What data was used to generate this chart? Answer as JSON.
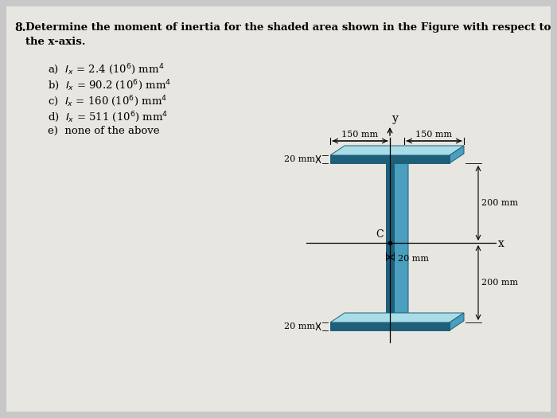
{
  "bg_color": "#c8c8c8",
  "paper_color": "#e8e6e0",
  "title_num": "8.",
  "title_text": "Determine the moment of inertia for the shaded area shown in the Figure with respect to\n    the x-axis.",
  "answer_options": [
    "a)  Iₓ = 2.4 (10⁶) mm⁴",
    "b)  Iₓ = 90.2 (10⁶) mm⁴",
    "c)  Iₓ = 160 (10⁶) mm⁴",
    "d)  Iₓ = 511 (10⁶) mm⁴",
    "e)  none of the above"
  ],
  "dark_blue": "#1e5f7a",
  "mid_blue": "#4a9fbe",
  "light_blue": "#8dcfdf",
  "very_light_blue": "#aadce8",
  "fw": 150,
  "fh": 20,
  "ww": 10,
  "wh": 200,
  "ox": 30,
  "oy": 18
}
